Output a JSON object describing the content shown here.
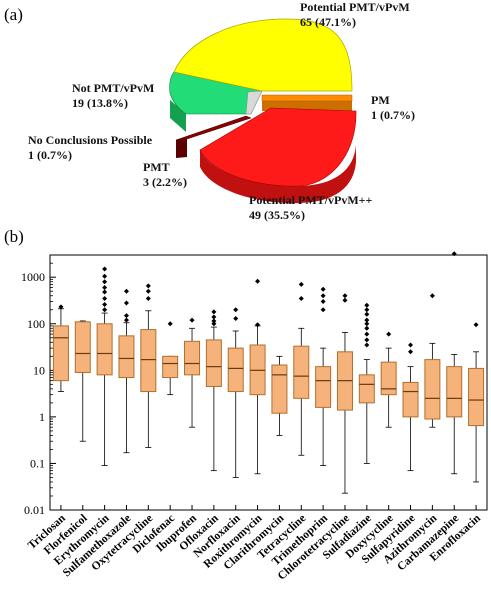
{
  "panels": {
    "a": "(a)",
    "b": "(b)"
  },
  "chart_data": [
    {
      "type": "pie",
      "slices": [
        {
          "key": "potential_pmt_vpvm",
          "label": "Potential PMT/vPvM",
          "value_text": "65 (47.1%)",
          "value": 65,
          "percent": 47.1,
          "color": "#ffff00"
        },
        {
          "key": "pm",
          "label": "PM",
          "value_text": "1 (0.7%)",
          "value": 1,
          "percent": 0.7,
          "color": "#ff8c00"
        },
        {
          "key": "potential_pmt_vpvm_pp",
          "label": "Potential PMT/vPvM++",
          "value_text": "49 (35.5%)",
          "value": 49,
          "percent": 35.5,
          "color": "#ff1a1a"
        },
        {
          "key": "pmt",
          "label": "PMT",
          "value_text": "3 (2.2%)",
          "value": 3,
          "percent": 2.2,
          "color": "#8b0000"
        },
        {
          "key": "no_conclusions",
          "label": "No Conclusions Possible",
          "value_text": "1 (0.7%)",
          "value": 1,
          "percent": 0.7,
          "color": "#d9d9d9"
        },
        {
          "key": "not_pmt_vpvm",
          "label": "Not PMT/vPvM",
          "value_text": "19 (13.8%)",
          "value": 19,
          "percent": 13.8,
          "color": "#22dd77"
        }
      ]
    },
    {
      "type": "box",
      "yscale": "log",
      "ylim": [
        0.01,
        3000
      ],
      "yticks": [
        "0.01",
        "0.1",
        "1",
        "10",
        "100",
        "1000"
      ],
      "box_color": "#f5b27a",
      "box_edge": "#b0702e",
      "categories": [
        {
          "name": "Triclosan",
          "whislo": 3.5,
          "q1": 6,
          "med": 50,
          "q3": 90,
          "whishi": 210,
          "fliers": [
            230
          ]
        },
        {
          "name": "Florfenicol",
          "whislo": 0.3,
          "q1": 9,
          "med": 23,
          "q3": 110,
          "whishi": 115,
          "fliers": []
        },
        {
          "name": "Erythromycin",
          "whislo": 0.09,
          "q1": 8,
          "med": 23,
          "q3": 100,
          "whishi": 170,
          "fliers": [
            1500,
            1050,
            800,
            600,
            480,
            350,
            260,
            200
          ]
        },
        {
          "name": "Sulfamethoxazole",
          "whislo": 0.17,
          "q1": 7,
          "med": 18,
          "q3": 55,
          "whishi": 105,
          "fliers": [
            500,
            280,
            150,
            120
          ]
        },
        {
          "name": "Oxytetracycline",
          "whislo": 0.22,
          "q1": 3.5,
          "med": 17,
          "q3": 75,
          "whishi": 190,
          "fliers": [
            650,
            500,
            350
          ]
        },
        {
          "name": "Diclofenac",
          "whislo": 3,
          "q1": 7,
          "med": 14,
          "q3": 20,
          "whishi": 20,
          "fliers": [
            100
          ]
        },
        {
          "name": "Ibuprofen",
          "whislo": 0.6,
          "q1": 8,
          "med": 14,
          "q3": 42,
          "whishi": 80,
          "fliers": [
            120
          ]
        },
        {
          "name": "Ofloxacin",
          "whislo": 0.07,
          "q1": 4.5,
          "med": 12,
          "q3": 45,
          "whishi": 85,
          "fliers": [
            180,
            140,
            115,
            100
          ]
        },
        {
          "name": "Norfloxacin",
          "whislo": 0.05,
          "q1": 3.5,
          "med": 11,
          "q3": 30,
          "whishi": 70,
          "fliers": [
            200,
            130
          ]
        },
        {
          "name": "Roxithromycin",
          "whislo": 0.06,
          "q1": 3,
          "med": 10,
          "q3": 35,
          "whishi": 90,
          "fliers": [
            820,
            95
          ]
        },
        {
          "name": "Clarithromycin",
          "whislo": 0.4,
          "q1": 1.2,
          "med": 8,
          "q3": 13,
          "whishi": 20,
          "fliers": []
        },
        {
          "name": "Tetracycline",
          "whislo": 0.15,
          "q1": 2.5,
          "med": 7.5,
          "q3": 33,
          "whishi": 80,
          "fliers": [
            700,
            350
          ]
        },
        {
          "name": "Trimethoprim",
          "whislo": 0.09,
          "q1": 1.6,
          "med": 6,
          "q3": 12,
          "whishi": 30,
          "fliers": [
            550,
            400,
            300,
            200
          ]
        },
        {
          "name": "Chlorotetracycline",
          "whislo": 0.023,
          "q1": 1.4,
          "med": 6,
          "q3": 25,
          "whishi": 65,
          "fliers": [
            400,
            320
          ]
        },
        {
          "name": "Sulfadiazine",
          "whislo": 0.1,
          "q1": 2,
          "med": 5,
          "q3": 8,
          "whishi": 17,
          "fliers": [
            250,
            200,
            160,
            120,
            100,
            80,
            60,
            45,
            35
          ]
        },
        {
          "name": "Doxycycline",
          "whislo": 0.6,
          "q1": 3,
          "med": 4,
          "q3": 15,
          "whishi": 30,
          "fliers": [
            60
          ]
        },
        {
          "name": "Sulfapyridine",
          "whislo": 0.07,
          "q1": 1,
          "med": 3.5,
          "q3": 5.5,
          "whishi": 12,
          "fliers": [
            35,
            25
          ]
        },
        {
          "name": "Azithromycin",
          "whislo": 0.6,
          "q1": 0.9,
          "med": 2.5,
          "q3": 17,
          "whishi": 38,
          "fliers": [
            400
          ]
        },
        {
          "name": "Carbamazepine",
          "whislo": 0.06,
          "q1": 1,
          "med": 2.5,
          "q3": 12,
          "whishi": 22,
          "fliers": [
            3200
          ]
        },
        {
          "name": "Enrofloxacin",
          "whislo": 0.04,
          "q1": 0.65,
          "med": 2.3,
          "q3": 11,
          "whishi": 25,
          "fliers": [
            95
          ]
        }
      ]
    }
  ]
}
